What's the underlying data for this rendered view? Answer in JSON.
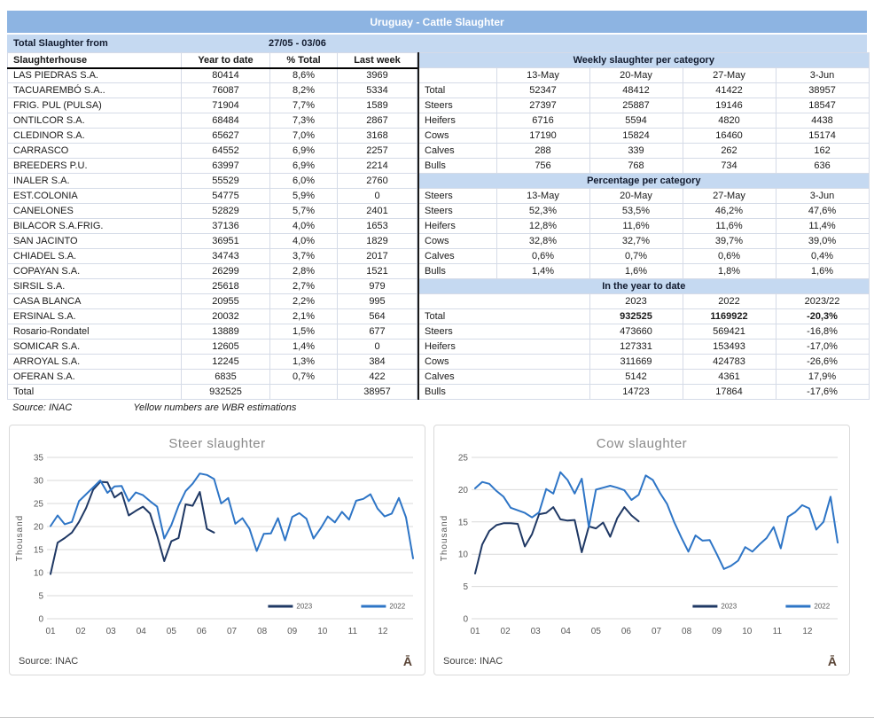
{
  "title": "Uruguay - Cattle Slaughter",
  "period": {
    "label": "Total Slaughter from",
    "range": "27/05 - 03/06"
  },
  "footnote": {
    "source": "Source: INAC",
    "note": "Yellow numbers are WBR estimations"
  },
  "left_table": {
    "headers": [
      "Slaughterhouse",
      "Year to date",
      "% Total",
      "Last week"
    ],
    "rows": [
      [
        "LAS PIEDRAS S.A.",
        "80414",
        "8,6%",
        "3969"
      ],
      [
        "TACUAREMBÓ S.A..",
        "76087",
        "8,2%",
        "5334"
      ],
      [
        "FRIG. PUL (PULSA)",
        "71904",
        "7,7%",
        "1589"
      ],
      [
        "ONTILCOR S.A.",
        "68484",
        "7,3%",
        "2867"
      ],
      [
        "CLEDINOR S.A.",
        "65627",
        "7,0%",
        "3168"
      ],
      [
        "CARRASCO",
        "64552",
        "6,9%",
        "2257"
      ],
      [
        "BREEDERS P.U.",
        "63997",
        "6,9%",
        "2214"
      ],
      [
        "INALER S.A.",
        "55529",
        "6,0%",
        "2760"
      ],
      [
        "EST.COLONIA",
        "54775",
        "5,9%",
        "0"
      ],
      [
        "CANELONES",
        "52829",
        "5,7%",
        "2401"
      ],
      [
        "BILACOR S.A.FRIG.",
        "37136",
        "4,0%",
        "1653"
      ],
      [
        "SAN JACINTO",
        "36951",
        "4,0%",
        "1829"
      ],
      [
        "CHIADEL S.A.",
        "34743",
        "3,7%",
        "2017"
      ],
      [
        "COPAYAN S.A.",
        "26299",
        "2,8%",
        "1521"
      ],
      [
        "SIRSIL S.A.",
        "25618",
        "2,7%",
        "979"
      ],
      [
        "CASA BLANCA",
        "20955",
        "2,2%",
        "995"
      ],
      [
        "ERSINAL S.A.",
        "20032",
        "2,1%",
        "564"
      ],
      [
        "Rosario-Rondatel",
        "13889",
        "1,5%",
        "677"
      ],
      [
        "SOMICAR S.A.",
        "12605",
        "1,4%",
        "0"
      ],
      [
        "ARROYAL S.A.",
        "12245",
        "1,3%",
        "384"
      ],
      [
        "OFERAN S.A.",
        "6835",
        "0,7%",
        "422"
      ],
      [
        "Total",
        "932525",
        "",
        "38957"
      ]
    ]
  },
  "right_table": {
    "sections": [
      {
        "title": "Weekly slaughter per category",
        "col_headers": [
          "",
          "13-May",
          "20-May",
          "27-May",
          "3-Jun"
        ],
        "rows": [
          [
            "Total",
            "52347",
            "48412",
            "41422",
            "38957"
          ],
          [
            "Steers",
            "27397",
            "25887",
            "19146",
            "18547"
          ],
          [
            "Heifers",
            "6716",
            "5594",
            "4820",
            "4438"
          ],
          [
            "Cows",
            "17190",
            "15824",
            "16460",
            "15174"
          ],
          [
            "Calves",
            "288",
            "339",
            "262",
            "162"
          ],
          [
            "Bulls",
            "756",
            "768",
            "734",
            "636"
          ]
        ],
        "bold_first_row": false
      },
      {
        "title": "Percentage per category",
        "col_headers": [
          "Steers",
          "13-May",
          "20-May",
          "27-May",
          "3-Jun"
        ],
        "rows": [
          [
            "Steers",
            "52,3%",
            "53,5%",
            "46,2%",
            "47,6%"
          ],
          [
            "Heifers",
            "12,8%",
            "11,6%",
            "11,6%",
            "11,4%"
          ],
          [
            "Cows",
            "32,8%",
            "32,7%",
            "39,7%",
            "39,0%"
          ],
          [
            "Calves",
            "0,6%",
            "0,7%",
            "0,6%",
            "0,4%"
          ],
          [
            "Bulls",
            "1,4%",
            "1,6%",
            "1,8%",
            "1,6%"
          ]
        ],
        "bold_first_row": false
      },
      {
        "title": "In the year to date",
        "col_headers": [
          "",
          "2023",
          "2022",
          "2023/22"
        ],
        "rows": [
          [
            "Total",
            "932525",
            "1169922",
            "-20,3%"
          ],
          [
            "Steers",
            "473660",
            "569421",
            "-16,8%"
          ],
          [
            "Heifers",
            "127331",
            "153493",
            "-17,0%"
          ],
          [
            "Cows",
            "311669",
            "424783",
            "-26,6%"
          ],
          [
            "Calves",
            "5142",
            "4361",
            "17,9%"
          ],
          [
            "Bulls",
            "14723",
            "17864",
            "-17,6%"
          ]
        ],
        "bold_first_row": true
      }
    ]
  },
  "colors": {
    "title_bar": "#8db4e2",
    "band": "#c5d9f1",
    "series_2023": "#1f3864",
    "series_2022": "#2e75c6",
    "grid": "#d9d9d9",
    "chart_text": "#595959",
    "chart_title": "#8a8a8a",
    "watermark": "#5a4436"
  },
  "chart_data": [
    {
      "type": "line",
      "title": "Steer slaughter",
      "ylabel": "Thousand",
      "ylim": [
        0,
        35
      ],
      "ytick_step": 5,
      "x_labels": [
        "01",
        "02",
        "03",
        "04",
        "05",
        "06",
        "07",
        "08",
        "09",
        "10",
        "11",
        "12"
      ],
      "x_unit": "month of year, weekly data points",
      "weeks": 52,
      "legend_position": "inside-bottom-right",
      "grid": true,
      "source": "Source: INAC",
      "watermark": "Ā",
      "series": [
        {
          "name": "2023",
          "color": "#1f3864",
          "values": [
            9.7,
            16.5,
            17.5,
            18.7,
            21.0,
            24.0,
            28.0,
            29.7,
            29.6,
            26.3,
            27.4,
            22.4,
            23.4,
            24.3,
            22.8,
            18.0,
            12.5,
            16.8,
            17.5,
            24.8,
            24.5,
            27.5,
            19.5,
            18.7
          ]
        },
        {
          "name": "2022",
          "color": "#2e75c6",
          "values": [
            20.1,
            22.4,
            20.5,
            21.0,
            25.5,
            27.0,
            28.5,
            30.0,
            27.3,
            28.7,
            28.8,
            25.5,
            27.4,
            26.8,
            25.5,
            24.3,
            17.4,
            20.3,
            24.5,
            27.7,
            29.3,
            31.5,
            31.2,
            30.3,
            25.0,
            26.2,
            20.6,
            21.8,
            19.5,
            14.7,
            18.4,
            18.5,
            21.8,
            17.0,
            22.1,
            22.9,
            21.7,
            17.4,
            19.6,
            22.2,
            20.9,
            23.2,
            21.5,
            25.6,
            26.0,
            27.0,
            23.9,
            22.2,
            22.8,
            26.2,
            22.0,
            13.1
          ]
        }
      ]
    },
    {
      "type": "line",
      "title": "Cow slaughter",
      "ylabel": "Thousand",
      "ylim": [
        0,
        25
      ],
      "ytick_step": 5,
      "x_labels": [
        "01",
        "02",
        "03",
        "04",
        "05",
        "06",
        "07",
        "08",
        "09",
        "10",
        "11",
        "12"
      ],
      "x_unit": "month of year, weekly data points",
      "weeks": 52,
      "legend_position": "inside-bottom-right",
      "grid": true,
      "source": "Source: INAC",
      "watermark": "Ā",
      "series": [
        {
          "name": "2023",
          "color": "#1f3864",
          "values": [
            7.0,
            11.5,
            13.6,
            14.5,
            14.8,
            14.8,
            14.7,
            11.2,
            13.1,
            16.2,
            16.4,
            17.3,
            15.4,
            15.2,
            15.3,
            10.3,
            14.3,
            14.0,
            14.9,
            12.7,
            15.6,
            17.3,
            16.0,
            15.1
          ]
        },
        {
          "name": "2022",
          "color": "#2e75c6",
          "values": [
            20.2,
            21.2,
            20.9,
            19.8,
            18.9,
            17.2,
            16.8,
            16.4,
            15.7,
            16.5,
            20.1,
            19.4,
            22.7,
            21.5,
            19.4,
            21.7,
            14.2,
            20.0,
            20.3,
            20.6,
            20.3,
            19.9,
            18.4,
            19.2,
            22.2,
            21.5,
            19.5,
            17.8,
            15.0,
            12.6,
            10.4,
            12.9,
            12.1,
            12.2,
            10.0,
            7.7,
            8.2,
            9.0,
            11.1,
            10.4,
            11.5,
            12.5,
            14.2,
            10.9,
            15.8,
            16.5,
            17.6,
            17.1,
            13.8,
            15.0,
            18.9,
            11.8
          ]
        }
      ]
    }
  ]
}
